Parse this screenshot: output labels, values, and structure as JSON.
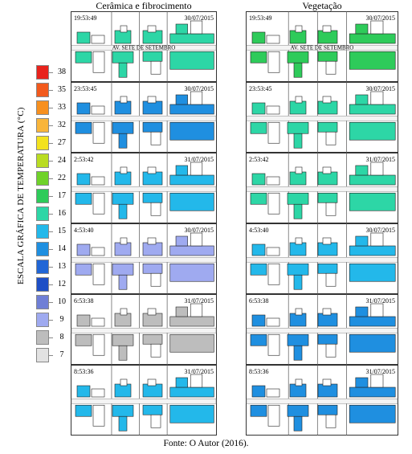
{
  "headers": {
    "left": "Cerâmica e fibrocimento",
    "right": "Vegetação"
  },
  "scale": {
    "title": "ESCALA GRÁFICA DE TEMPERATURA (°C)",
    "entries": [
      {
        "value": "38",
        "color": "#e8231c"
      },
      {
        "value": "35",
        "color": "#f25a1d"
      },
      {
        "value": "33",
        "color": "#f7901f"
      },
      {
        "value": "32",
        "color": "#f9b53a"
      },
      {
        "value": "27",
        "color": "#f3e21e"
      },
      {
        "value": "24",
        "color": "#b9dc22"
      },
      {
        "value": "22",
        "color": "#6fd22a"
      },
      {
        "value": "17",
        "color": "#2ecb5a"
      },
      {
        "value": "16",
        "color": "#2dd6a6"
      },
      {
        "value": "15",
        "color": "#23b8ea"
      },
      {
        "value": "14",
        "color": "#1f8fe0"
      },
      {
        "value": "13",
        "color": "#2166d6"
      },
      {
        "value": "12",
        "color": "#1e4fc6"
      },
      {
        "value": "10",
        "color": "#6f7fd6"
      },
      {
        "value": "9",
        "color": "#9faaf0"
      },
      {
        "value": "8",
        "color": "#bdbdbd"
      },
      {
        "value": "7",
        "color": "#e2e2e2"
      }
    ]
  },
  "street_label": "AV. SETE DE SETEMBRO",
  "rows": [
    {
      "time": "19:53:49",
      "date": "30/07/2015",
      "left_color": "#2dd6a6",
      "right_color": "#2ecb5a"
    },
    {
      "time": "23:53:45",
      "date": "30/07/2015",
      "left_color": "#1f8fe0",
      "right_color": "#2dd6a6"
    },
    {
      "time": "2:53:42",
      "date": "31/07/2015",
      "left_color": "#23b8ea",
      "right_color": "#2dd6a6"
    },
    {
      "time": "4:53:40",
      "date": "30/07/2015",
      "left_color": "#9faaf0",
      "right_color": "#23b8ea"
    },
    {
      "time": "6:53:38",
      "date": "31/07/2015",
      "left_color": "#bdbdbd",
      "right_color": "#1f8fe0"
    },
    {
      "time": "8:53:36",
      "date": "31/07/2015",
      "left_color": "#23b8ea",
      "right_color": "#1f8fe0"
    }
  ],
  "footer": "Fonte: O Autor (2016)."
}
